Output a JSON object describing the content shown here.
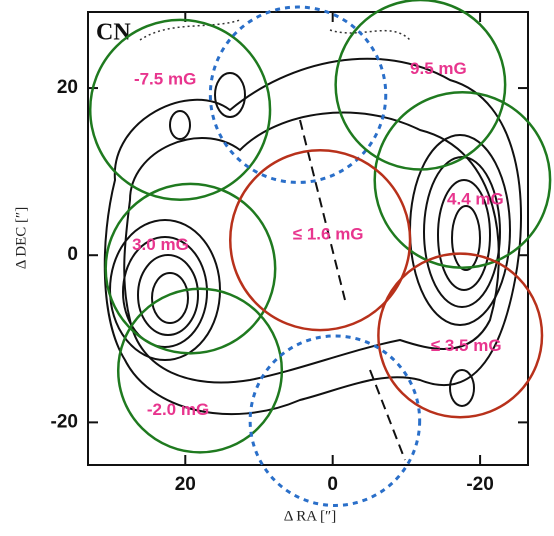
{
  "chart_data": {
    "type": "beam-map",
    "panel_label": "CN",
    "x_label": "Δ RA [″]",
    "y_label": "Δ DEC [″]",
    "xlim": [
      33.2,
      -26.5
    ],
    "ylim": [
      -25.1,
      29.1
    ],
    "xticks": [
      20,
      0,
      -20
    ],
    "yticks": [
      20,
      0,
      -20
    ],
    "circles": [
      {
        "x": 20.7,
        "y": 17.4,
        "r": 12.2,
        "label": "-7.5 mG",
        "color": "#1f7a1f"
      },
      {
        "x": 4.7,
        "y": 19.2,
        "r": 11.9,
        "color": "#2a6fc9",
        "dashed": true
      },
      {
        "x": -11.9,
        "y": 20.4,
        "r": 11.5,
        "label": "9.5 mG",
        "color": "#1f7a1f"
      },
      {
        "x": -17.6,
        "y": 9.0,
        "r": 11.9,
        "label": "4.4 mG",
        "color": "#1f7a1f"
      },
      {
        "x": 19.3,
        "y": -1.6,
        "r": 11.5,
        "label": "3.0 mG",
        "color": "#1f7a1f"
      },
      {
        "x": 1.7,
        "y": 1.8,
        "r": 12.2,
        "label": "≤ 1.6 mG",
        "color": "#b8311b"
      },
      {
        "x": -17.3,
        "y": -9.6,
        "r": 11.1,
        "label": "≤ 3.5 mG",
        "color": "#b8311b"
      },
      {
        "x": 18.0,
        "y": -13.8,
        "r": 11.1,
        "label": "-2.0 mG",
        "color": "#1f7a1f"
      },
      {
        "x": -0.3,
        "y": -19.8,
        "r": 11.5,
        "color": "#2a6fc9",
        "dashed": true
      }
    ]
  }
}
